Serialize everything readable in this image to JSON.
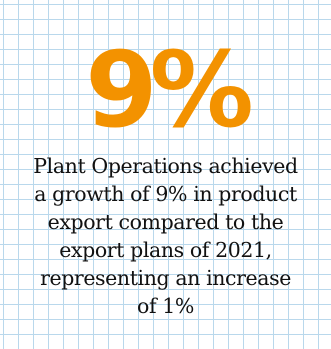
{
  "infographic": {
    "headline_stat": "9%",
    "caption_lines": [
      "Plant Operations achieved",
      "a growth of 9% in product",
      "export compared to the",
      "export plans of 2021,",
      "representing an increase",
      "of 1%"
    ]
  },
  "colors": {
    "stat": "#f39200",
    "text": "#111111",
    "grid": "#b9d8ec",
    "background": "#ffffff"
  }
}
